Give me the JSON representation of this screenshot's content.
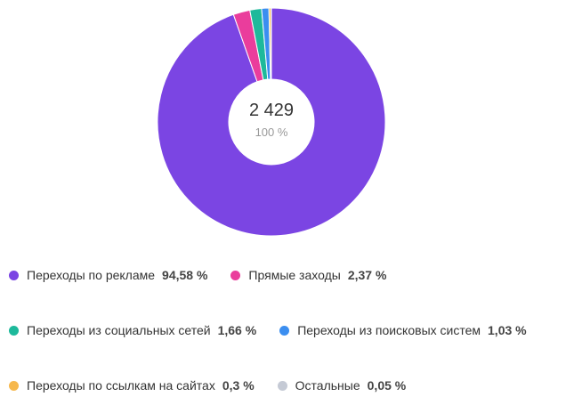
{
  "chart_data": {
    "type": "pie",
    "categories": [
      "Переходы по рекламе",
      "Прямые заходы",
      "Переходы из социальных сетей",
      "Переходы из поисковых систем",
      "Переходы по ссылкам на сайтах",
      "Остальные"
    ],
    "values": [
      94.58,
      2.37,
      1.66,
      1.03,
      0.3,
      0.05
    ],
    "value_labels": [
      "94,58 %",
      "2,37 %",
      "1,66 %",
      "1,03 %",
      "0,3 %",
      "0,05 %"
    ],
    "colors": [
      "#7b45e3",
      "#ea3d9c",
      "#1db99b",
      "#3b8ef0",
      "#f6b84d",
      "#c5cad5"
    ],
    "center_label": "2 429",
    "center_sublabel": "100 %"
  }
}
